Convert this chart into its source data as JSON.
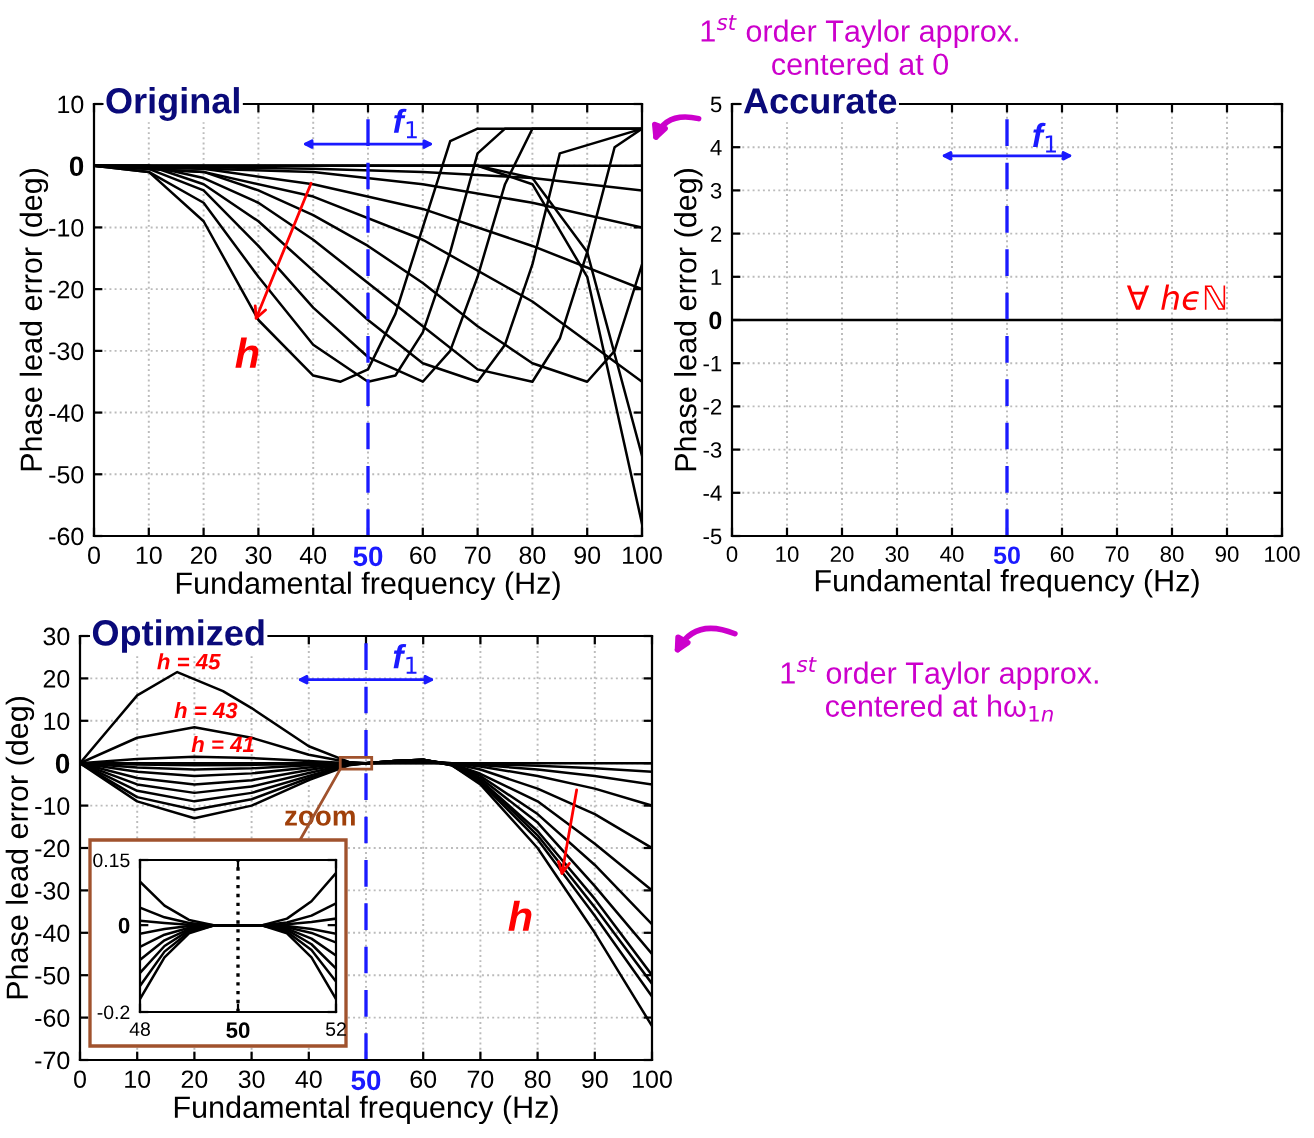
{
  "chart_data": [
    {
      "type": "line",
      "title": "Original",
      "xlabel": "Fundamental frequency (Hz)",
      "ylabel": "Phase lead error (deg)",
      "color": "#000000",
      "xlim": [
        0,
        100
      ],
      "ylim": [
        -60,
        10
      ],
      "xticks": [
        0,
        10,
        20,
        30,
        40,
        50,
        60,
        70,
        80,
        90,
        100
      ],
      "yticks": [
        -60,
        -50,
        -40,
        -30,
        -20,
        -10,
        0,
        10
      ],
      "grid": true,
      "ref_lines": [
        {
          "axis": "x",
          "value": 50,
          "color": "#1a1aff",
          "line_style": "dashed"
        }
      ],
      "annotations": [
        {
          "text": "h",
          "x": 29,
          "y": -26
        },
        "f$_{1}$",
        "1$^{st}$ order Taylor approx.\ncentered at 0"
      ],
      "series": [
        {
          "x": [
            0,
            10,
            20,
            30,
            40,
            45,
            50,
            55,
            60,
            65,
            70,
            100
          ],
          "values": [
            0,
            -1,
            -9,
            -25,
            -34,
            -35,
            -33,
            -24,
            -10,
            4,
            6,
            6
          ]
        },
        {
          "x": [
            0,
            10,
            20,
            30,
            40,
            50,
            55,
            60,
            65,
            70,
            75,
            100
          ],
          "values": [
            0,
            -1,
            -6,
            -18,
            -29,
            -35,
            -34,
            -27,
            -14,
            2,
            6,
            6
          ]
        },
        {
          "x": [
            0,
            10,
            20,
            30,
            40,
            50,
            60,
            65,
            70,
            75,
            80,
            100
          ],
          "values": [
            0,
            -0.5,
            -4,
            -13,
            -23,
            -31,
            -35,
            -30,
            -18,
            -3,
            6,
            6
          ]
        },
        {
          "x": [
            0,
            10,
            20,
            30,
            40,
            50,
            60,
            70,
            75,
            80,
            85,
            100
          ],
          "values": [
            0,
            0,
            -3,
            -9,
            -17,
            -25,
            -32,
            -35,
            -29,
            -16,
            2,
            6
          ]
        },
        {
          "x": [
            0,
            10,
            20,
            30,
            40,
            50,
            60,
            70,
            80,
            85,
            90,
            95,
            100
          ],
          "values": [
            0,
            0,
            -2,
            -6,
            -12,
            -19,
            -26,
            -33,
            -35,
            -28,
            -14,
            3,
            6
          ]
        },
        {
          "x": [
            0,
            20,
            30,
            40,
            50,
            60,
            70,
            80,
            90,
            95,
            100
          ],
          "values": [
            0,
            -1,
            -4,
            -8,
            -13,
            -19,
            -26,
            -32,
            -35,
            -30,
            -16
          ]
        },
        {
          "x": [
            0,
            20,
            40,
            60,
            80,
            100
          ],
          "values": [
            0,
            -1,
            -5,
            -12,
            -22,
            -35
          ]
        },
        {
          "x": [
            0,
            20,
            40,
            60,
            80,
            100
          ],
          "values": [
            0,
            -0.5,
            -3,
            -7,
            -13,
            -20
          ]
        },
        {
          "x": [
            0,
            40,
            60,
            80,
            100
          ],
          "values": [
            0,
            -1,
            -3,
            -6,
            -10
          ]
        },
        {
          "x": [
            0,
            40,
            60,
            80,
            100
          ],
          "values": [
            0,
            -0.5,
            -1,
            -2,
            -4
          ]
        },
        {
          "x": [
            0,
            100
          ],
          "values": [
            0,
            0
          ]
        },
        {
          "x": [
            0,
            70,
            80,
            90,
            100
          ],
          "values": [
            0,
            0,
            -3,
            -18,
            -58
          ]
        },
        {
          "x": [
            0,
            70,
            80,
            90,
            100
          ],
          "values": [
            0,
            0,
            -2,
            -14,
            -47
          ]
        }
      ]
    },
    {
      "type": "line",
      "title": "Accurate",
      "xlabel": "Fundamental frequency (Hz)",
      "ylabel": "Phase lead error (deg)",
      "color": "#000000",
      "xlim": [
        0,
        100
      ],
      "ylim": [
        -5,
        5
      ],
      "xticks": [
        0,
        10,
        20,
        30,
        40,
        50,
        60,
        70,
        80,
        90,
        100
      ],
      "yticks": [
        -5,
        -4,
        -3,
        -2,
        -1,
        0,
        1,
        2,
        3,
        4,
        5
      ],
      "grid": true,
      "ref_lines": [
        {
          "axis": "x",
          "value": 50,
          "color": "#1a1aff",
          "line_style": "dashed"
        }
      ],
      "annotations": [
        "∀ hϵℕ",
        "f$_{1}$"
      ],
      "series": [
        {
          "x": [
            0,
            100
          ],
          "values": [
            0,
            0
          ]
        }
      ]
    },
    {
      "type": "line",
      "title": "Optimized",
      "xlabel": "Fundamental frequency (Hz)",
      "ylabel": "Phase lead error (deg)",
      "color": "#000000",
      "xlim": [
        0,
        100
      ],
      "ylim": [
        -70,
        30
      ],
      "xticks": [
        0,
        10,
        20,
        30,
        40,
        50,
        60,
        70,
        80,
        90,
        100
      ],
      "yticks": [
        -70,
        -60,
        -50,
        -40,
        -30,
        -20,
        -10,
        0,
        10,
        20,
        30
      ],
      "grid": true,
      "ref_lines": [
        {
          "axis": "x",
          "value": 50,
          "color": "#1a1aff",
          "line_style": "dashed"
        }
      ],
      "annotations": [
        "h = 45",
        "h = 43",
        "h = 41",
        {
          "text": "h",
          "x": 84,
          "y": -28
        },
        "f$_{1}$",
        {
          "text": "zoom",
          "x": 48,
          "y": 0
        },
        "1$^{st}$ order Taylor approx.\ncentered at hω$_{1n}$"
      ],
      "series": [
        {
          "x": [
            0,
            5,
            10,
            17,
            25,
            30,
            40,
            47,
            50,
            55,
            60,
            65,
            70,
            80,
            90,
            100
          ],
          "values": [
            0,
            8,
            16,
            21.5,
            17,
            13,
            4,
            0.3,
            0,
            0.5,
            0.8,
            -0.5,
            -5,
            -20,
            -40,
            -62
          ]
        },
        {
          "x": [
            0,
            10,
            20,
            30,
            40,
            47,
            50,
            55,
            60,
            65,
            70,
            80,
            90,
            100
          ],
          "values": [
            0,
            6,
            8.5,
            6,
            2,
            0.2,
            0,
            0.5,
            0.8,
            -0.5,
            -4.5,
            -18,
            -36,
            -55
          ]
        },
        {
          "x": [
            0,
            10,
            20,
            30,
            40,
            47,
            50,
            55,
            60,
            65,
            70,
            80,
            90,
            100
          ],
          "values": [
            0,
            1,
            1.5,
            1.2,
            0.5,
            0,
            0,
            0.5,
            0.8,
            -0.4,
            -4,
            -17,
            -34,
            -52
          ]
        },
        {
          "x": [
            0,
            10,
            20,
            30,
            40,
            47,
            50,
            55,
            60,
            65,
            70,
            80,
            90,
            100
          ],
          "values": [
            0,
            -9,
            -13,
            -10,
            -4,
            -0.5,
            0,
            0.5,
            0.8,
            -0.4,
            -4,
            -16,
            -32,
            -50
          ]
        },
        {
          "x": [
            0,
            10,
            20,
            30,
            40,
            47,
            50,
            55,
            60,
            65,
            70,
            80,
            90,
            100
          ],
          "values": [
            0,
            -8,
            -11,
            -8.5,
            -3.5,
            -0.4,
            0,
            0.5,
            0.8,
            -0.3,
            -3.5,
            -14,
            -29,
            -45
          ]
        },
        {
          "x": [
            0,
            10,
            20,
            30,
            40,
            47,
            50,
            55,
            60,
            65,
            70,
            80,
            90,
            100
          ],
          "values": [
            0,
            -6.5,
            -9,
            -7,
            -3,
            -0.3,
            0,
            0.5,
            0.7,
            -0.2,
            -3,
            -12,
            -24,
            -38
          ]
        },
        {
          "x": [
            0,
            10,
            20,
            30,
            40,
            47,
            50,
            55,
            60,
            65,
            70,
            80,
            90,
            100
          ],
          "values": [
            0,
            -5,
            -7,
            -5.5,
            -2.3,
            -0.2,
            0,
            0.4,
            0.6,
            -0.1,
            -2.5,
            -9,
            -19,
            -30
          ]
        },
        {
          "x": [
            0,
            10,
            20,
            30,
            40,
            47,
            50,
            55,
            60,
            65,
            70,
            80,
            90,
            100
          ],
          "values": [
            0,
            -3.5,
            -5,
            -4,
            -1.6,
            -0.1,
            0,
            0.3,
            0.5,
            0,
            -1.5,
            -6,
            -12,
            -20
          ]
        },
        {
          "x": [
            0,
            10,
            20,
            30,
            40,
            47,
            50,
            55,
            60,
            65,
            70,
            80,
            90,
            100
          ],
          "values": [
            0,
            -2,
            -3,
            -2.4,
            -1,
            0,
            0,
            0.2,
            0.3,
            0,
            -0.8,
            -3,
            -6,
            -10
          ]
        },
        {
          "x": [
            0,
            10,
            20,
            30,
            40,
            50,
            60,
            70,
            80,
            90,
            100
          ],
          "values": [
            0,
            -1,
            -1.5,
            -1.2,
            -0.5,
            0,
            0.2,
            -0.4,
            -1.5,
            -3,
            -5
          ]
        },
        {
          "x": [
            0,
            10,
            20,
            30,
            40,
            50,
            60,
            70,
            80,
            90,
            100
          ],
          "values": [
            0,
            -0.3,
            -0.5,
            -0.4,
            -0.2,
            0,
            0.1,
            -0.2,
            -0.6,
            -1.2,
            -2
          ]
        },
        {
          "x": [
            0,
            100
          ],
          "values": [
            0,
            0
          ]
        }
      ]
    },
    {
      "type": "line",
      "color": "#000000",
      "xlim": [
        48,
        52
      ],
      "ylim": [
        -0.2,
        0.15
      ],
      "xticks": [
        48,
        50,
        52
      ],
      "yticks": [
        -0.2,
        0,
        0.15
      ],
      "ref_lines": [
        {
          "axis": "x",
          "value": 50,
          "color": "#000000",
          "line_style": "dotted"
        }
      ],
      "series": [
        {
          "x": [
            48,
            48.5,
            49,
            49.5,
            50,
            50.5,
            51,
            51.5,
            52
          ],
          "values": [
            0.1,
            0.045,
            0.012,
            0,
            0,
            0,
            0.015,
            0.055,
            0.12
          ]
        },
        {
          "x": [
            48,
            48.5,
            49,
            49.5,
            50,
            50.5,
            51,
            51.5,
            52
          ],
          "values": [
            0.04,
            0.018,
            0.005,
            0,
            0,
            0,
            0.006,
            0.022,
            0.05
          ]
        },
        {
          "x": [
            48,
            48.5,
            49,
            49.5,
            50,
            50.5,
            51,
            51.5,
            52
          ],
          "values": [
            0.01,
            0.005,
            0.001,
            0,
            0,
            0,
            0.002,
            0.007,
            0.015
          ]
        },
        {
          "x": [
            48,
            48.5,
            49,
            49.5,
            50,
            50.5,
            51,
            51.5,
            52
          ],
          "values": [
            -0.02,
            -0.009,
            -0.002,
            0,
            0,
            0,
            -0.002,
            -0.009,
            -0.02
          ]
        },
        {
          "x": [
            48,
            48.5,
            49,
            49.5,
            50,
            50.5,
            51,
            51.5,
            52
          ],
          "values": [
            -0.05,
            -0.022,
            -0.006,
            0,
            0,
            0,
            -0.005,
            -0.018,
            -0.04
          ]
        },
        {
          "x": [
            48,
            48.5,
            49,
            49.5,
            50,
            50.5,
            51,
            51.5,
            52
          ],
          "values": [
            -0.08,
            -0.035,
            -0.009,
            0,
            0,
            0,
            -0.008,
            -0.031,
            -0.07
          ]
        },
        {
          "x": [
            48,
            48.5,
            49,
            49.5,
            50,
            50.5,
            51,
            51.5,
            52
          ],
          "values": [
            -0.11,
            -0.048,
            -0.012,
            -0.001,
            0,
            -0.001,
            -0.011,
            -0.044,
            -0.1
          ]
        },
        {
          "x": [
            48,
            48.5,
            49,
            49.5,
            50,
            50.5,
            51,
            51.5,
            52
          ],
          "values": [
            -0.14,
            -0.061,
            -0.016,
            -0.001,
            0,
            -0.001,
            -0.015,
            -0.057,
            -0.13
          ]
        },
        {
          "x": [
            48,
            48.5,
            49,
            49.5,
            50,
            50.5,
            51,
            51.5,
            52
          ],
          "values": [
            -0.17,
            -0.074,
            -0.019,
            -0.001,
            0,
            -0.001,
            -0.019,
            -0.074,
            -0.17
          ]
        }
      ]
    }
  ]
}
